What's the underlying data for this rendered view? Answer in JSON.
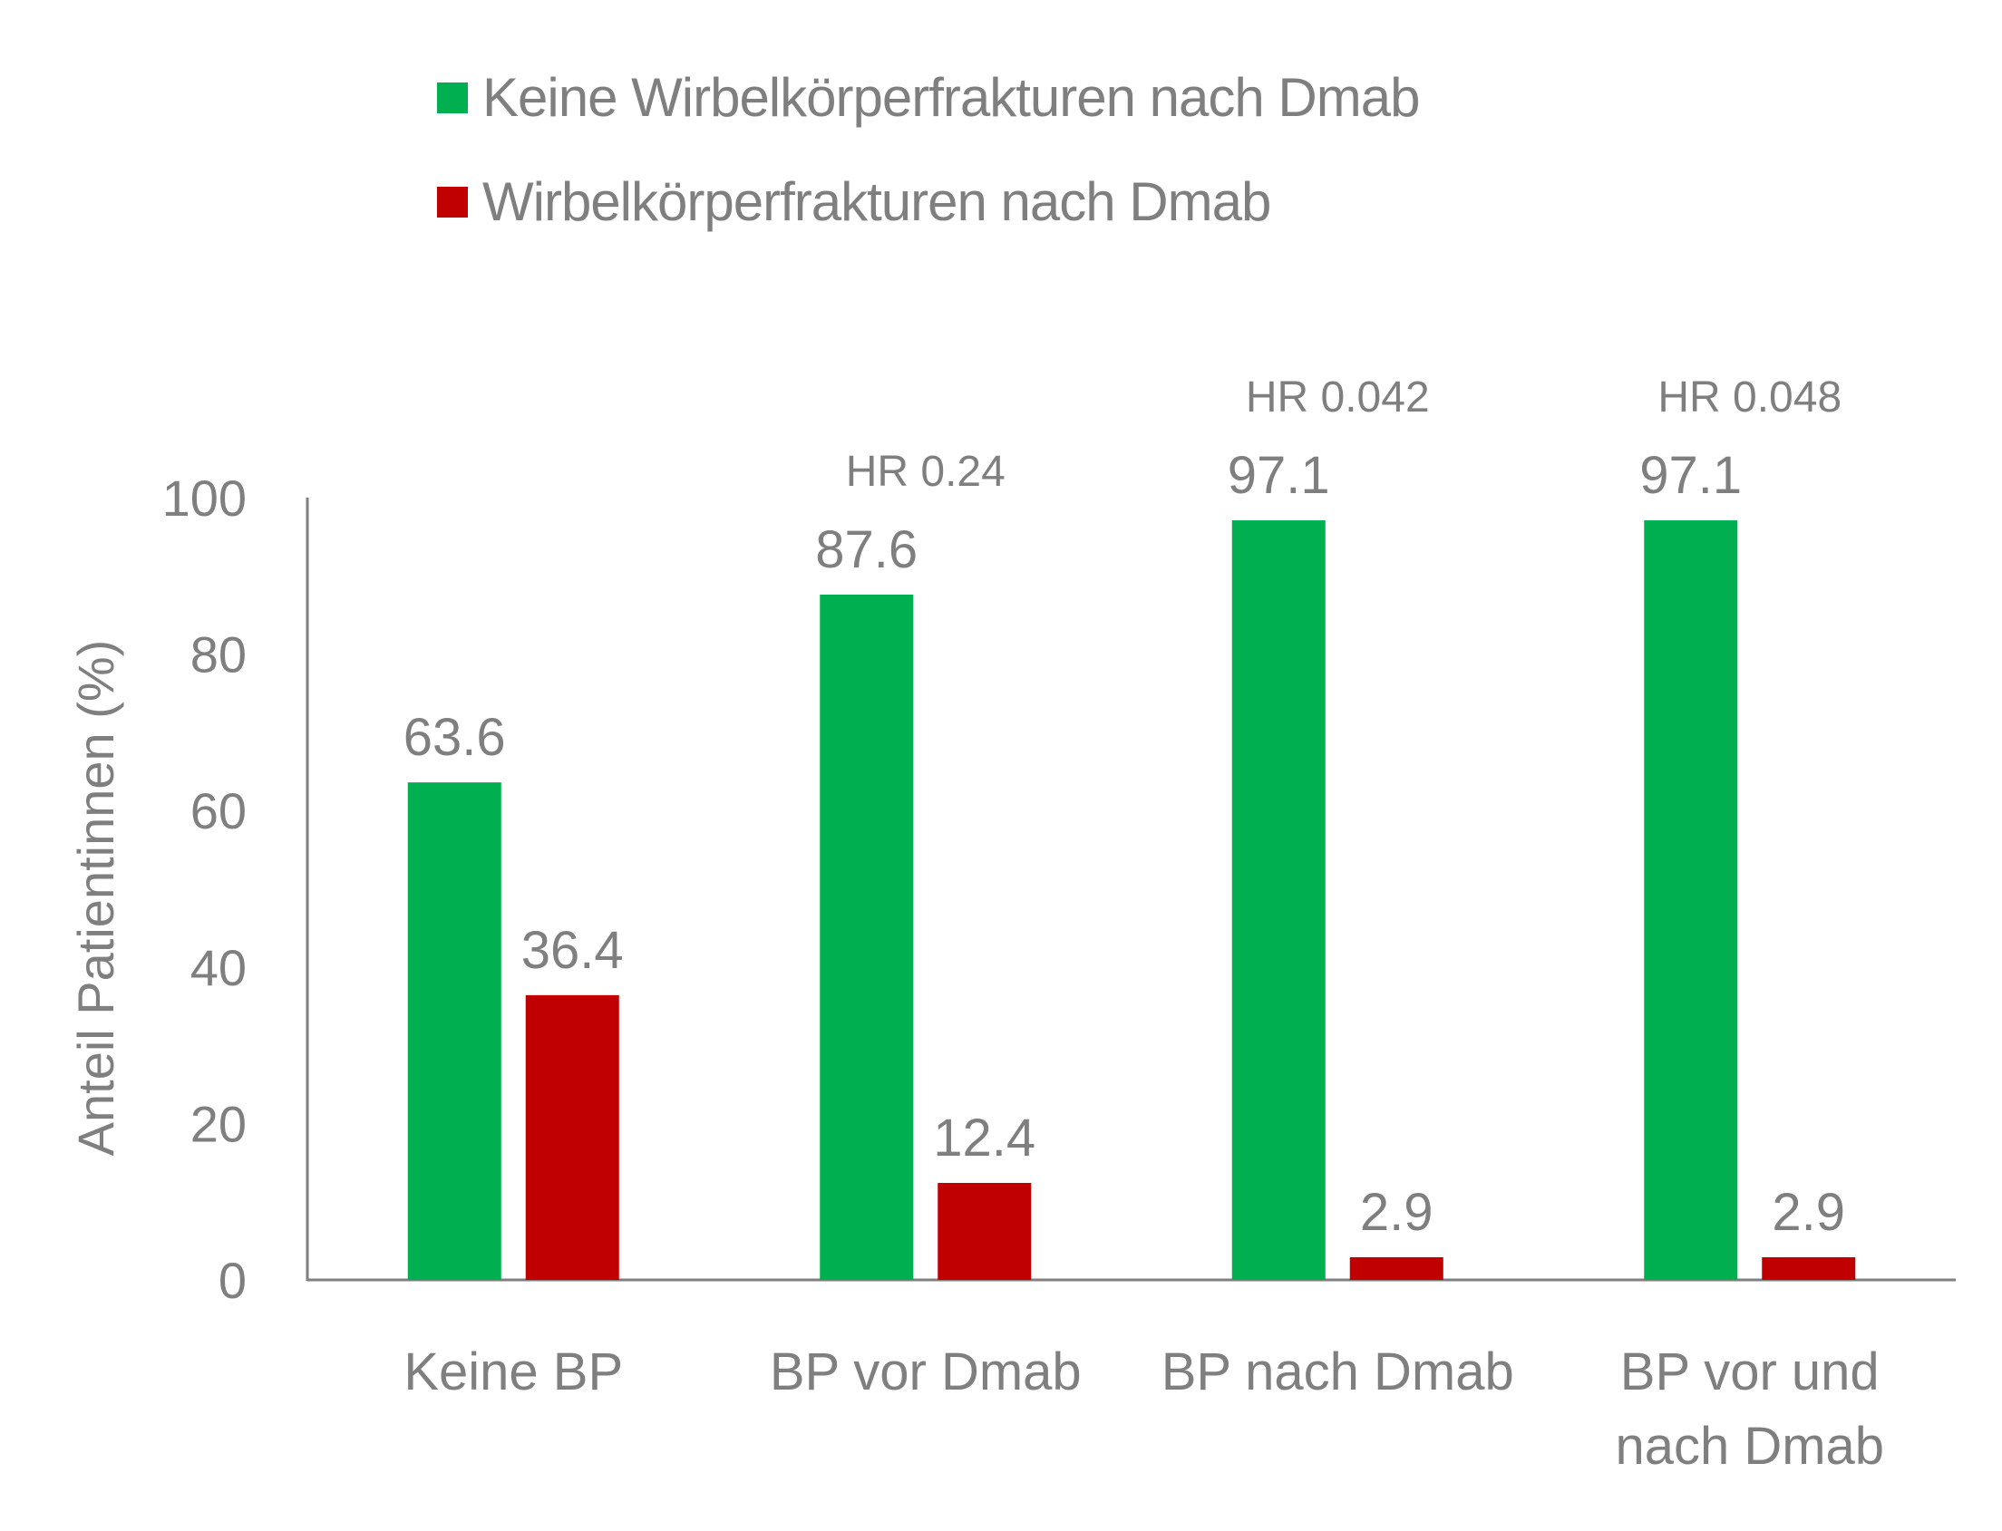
{
  "chart_data": {
    "type": "bar",
    "title": "",
    "xlabel": "",
    "ylabel": "Anteil Patientinnen (%)",
    "ylim": [
      0,
      100
    ],
    "yticks": [
      0,
      20,
      40,
      60,
      80,
      100
    ],
    "grid": false,
    "legend_position": "top-center",
    "categories": [
      [
        "Keine BP"
      ],
      [
        "BP vor Dmab"
      ],
      [
        "BP nach Dmab"
      ],
      [
        "BP vor und",
        "nach Dmab"
      ]
    ],
    "series": [
      {
        "name": "Keine Wirbelkörperfrakturen nach Dmab",
        "color": "#00b050",
        "values": [
          63.6,
          87.6,
          97.1,
          97.1
        ]
      },
      {
        "name": "Wirbelkörperfrakturen nach Dmab",
        "color": "#c00000",
        "values": [
          36.4,
          12.4,
          2.9,
          2.9
        ]
      }
    ],
    "data_labels": [
      [
        "63.6",
        "87.6",
        "97.1",
        "97.1"
      ],
      [
        "36.4",
        "12.4",
        "2.9",
        "2.9"
      ]
    ],
    "annotations": [
      "",
      "HR 0.24",
      "HR 0.042",
      "HR 0.048"
    ]
  },
  "legend": {
    "items": [
      {
        "label": "Keine Wirbelkörperfrakturen nach Dmab",
        "color": "#00b050"
      },
      {
        "label": "Wirbelkörperfrakturen nach Dmab",
        "color": "#c00000"
      }
    ]
  }
}
